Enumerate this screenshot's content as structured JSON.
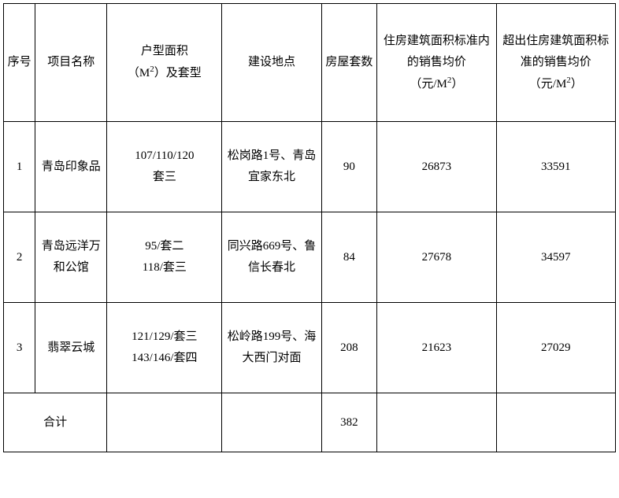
{
  "table": {
    "columns": {
      "seq": "序号",
      "name": "项目名称",
      "type_l1": "户型面积",
      "type_l2_pre": "（M",
      "type_l2_sup": "2",
      "type_l2_post": "）及套型",
      "loc": "建设地点",
      "count": "房屋套数",
      "price1_l1": "住房建筑面积标准内的销售均价",
      "price1_l2_pre": "（元/M",
      "price1_l2_sup": "2",
      "price1_l2_post": "）",
      "price2_l1": "超出住房建筑面积标准的销售均价",
      "price2_l2_pre": "（元/M",
      "price2_l2_sup": "2",
      "price2_l2_post": "）"
    },
    "rows": [
      {
        "seq": "1",
        "name": "青岛印象品",
        "type_l1": "107/110/120",
        "type_l2": "套三",
        "loc": "松岗路1号、青岛宜家东北",
        "count": "90",
        "price1": "26873",
        "price2": "33591"
      },
      {
        "seq": "2",
        "name": "青岛远洋万和公馆",
        "type_l1": "95/套二",
        "type_l2": "118/套三",
        "loc": "同兴路669号、鲁信长春北",
        "count": "84",
        "price1": "27678",
        "price2": "34597"
      },
      {
        "seq": "3",
        "name": "翡翠云城",
        "type_l1": "121/129/套三",
        "type_l2": "143/146/套四",
        "loc": "松岭路199号、海大西门对面",
        "count": "208",
        "price1": "21623",
        "price2": "27029"
      }
    ],
    "total": {
      "label": "合计",
      "count": "382"
    }
  }
}
